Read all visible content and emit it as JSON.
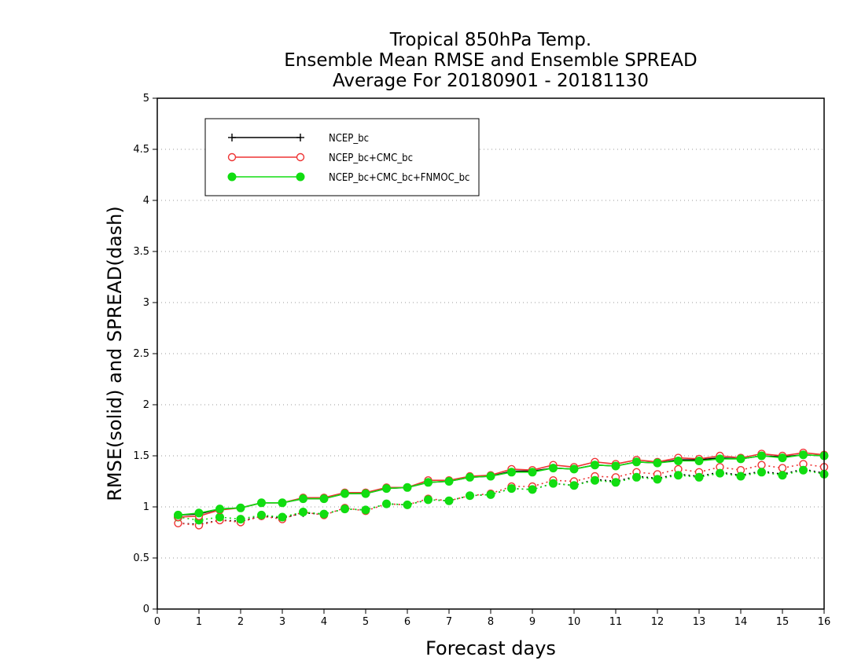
{
  "chart_data": {
    "type": "line",
    "title": [
      "Tropical 850hPa Temp.",
      "Ensemble Mean RMSE and Ensemble SPREAD",
      "Average For 20180901 - 20181130"
    ],
    "xlabel": "Forecast days",
    "ylabel": "RMSE(solid) and SPREAD(dash)",
    "xlim": [
      0,
      16
    ],
    "ylim": [
      0,
      5
    ],
    "xticks": [
      0,
      1,
      2,
      3,
      4,
      5,
      6,
      7,
      8,
      9,
      10,
      11,
      12,
      13,
      14,
      15,
      16
    ],
    "yticks": [
      0,
      0.5,
      1,
      1.5,
      2,
      2.5,
      3,
      3.5,
      4,
      4.5,
      5
    ],
    "ytick_labels": [
      "0",
      "0.5",
      "1",
      "1.5",
      "2",
      "2.5",
      "3",
      "3.5",
      "4",
      "4.5",
      "5"
    ],
    "grid": "horizontal dotted",
    "legend_position": "top-left",
    "x": [
      0.5,
      1,
      1.5,
      2,
      2.5,
      3,
      3.5,
      4,
      4.5,
      5,
      5.5,
      6,
      6.5,
      7,
      7.5,
      8,
      8.5,
      9,
      9.5,
      10,
      10.5,
      11,
      11.5,
      12,
      12.5,
      13,
      13.5,
      14,
      14.5,
      15,
      15.5,
      16
    ],
    "series": [
      {
        "name": "NCEP_bc",
        "color": "#000000",
        "marker": "plus",
        "rmse": [
          0.92,
          0.93,
          0.98,
          0.99,
          1.04,
          1.04,
          1.08,
          1.08,
          1.13,
          1.13,
          1.18,
          1.19,
          1.24,
          1.25,
          1.29,
          1.3,
          1.35,
          1.35,
          1.38,
          1.37,
          1.41,
          1.4,
          1.44,
          1.43,
          1.46,
          1.46,
          1.48,
          1.47,
          1.5,
          1.49,
          1.51,
          1.5
        ],
        "spread": [
          0.84,
          0.83,
          0.87,
          0.86,
          0.91,
          0.89,
          0.94,
          0.93,
          0.98,
          0.97,
          1.03,
          1.02,
          1.07,
          1.06,
          1.11,
          1.12,
          1.18,
          1.17,
          1.23,
          1.21,
          1.27,
          1.25,
          1.3,
          1.28,
          1.32,
          1.3,
          1.34,
          1.31,
          1.35,
          1.32,
          1.37,
          1.33
        ]
      },
      {
        "name": "NCEP_bc+CMC_bc",
        "color": "#ee3333",
        "marker": "open-circle",
        "rmse": [
          0.9,
          0.91,
          0.97,
          0.99,
          1.04,
          1.04,
          1.09,
          1.09,
          1.14,
          1.14,
          1.19,
          1.19,
          1.26,
          1.26,
          1.3,
          1.31,
          1.37,
          1.36,
          1.41,
          1.39,
          1.44,
          1.42,
          1.46,
          1.44,
          1.48,
          1.47,
          1.5,
          1.48,
          1.52,
          1.5,
          1.53,
          1.51
        ],
        "spread": [
          0.84,
          0.82,
          0.87,
          0.85,
          0.91,
          0.88,
          0.95,
          0.92,
          0.99,
          0.96,
          1.03,
          1.02,
          1.08,
          1.06,
          1.11,
          1.13,
          1.2,
          1.2,
          1.26,
          1.25,
          1.3,
          1.29,
          1.34,
          1.32,
          1.37,
          1.34,
          1.39,
          1.36,
          1.41,
          1.38,
          1.42,
          1.39
        ]
      },
      {
        "name": "NCEP_bc+CMC_bc+FNMOC_bc",
        "color": "#11dd11",
        "marker": "filled-circle",
        "rmse": [
          0.92,
          0.94,
          0.98,
          0.99,
          1.04,
          1.04,
          1.08,
          1.08,
          1.13,
          1.13,
          1.18,
          1.19,
          1.24,
          1.25,
          1.29,
          1.3,
          1.34,
          1.34,
          1.38,
          1.37,
          1.41,
          1.4,
          1.44,
          1.43,
          1.45,
          1.45,
          1.47,
          1.47,
          1.5,
          1.48,
          1.51,
          1.5
        ],
        "spread": [
          0.9,
          0.87,
          0.9,
          0.88,
          0.92,
          0.9,
          0.95,
          0.93,
          0.98,
          0.97,
          1.03,
          1.02,
          1.07,
          1.06,
          1.11,
          1.12,
          1.18,
          1.17,
          1.23,
          1.21,
          1.26,
          1.24,
          1.29,
          1.27,
          1.31,
          1.29,
          1.33,
          1.3,
          1.34,
          1.31,
          1.36,
          1.32
        ]
      }
    ]
  }
}
